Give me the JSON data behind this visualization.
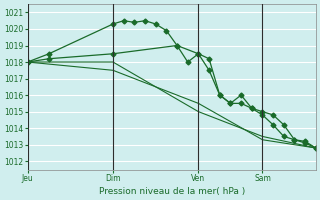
{
  "background_color": "#d0eeee",
  "grid_color": "#ffffff",
  "line_color": "#1a6b2a",
  "title": "Pression niveau de la mer( hPa )",
  "ylim": [
    1011.5,
    1021.5
  ],
  "yticks": [
    1012,
    1013,
    1014,
    1015,
    1016,
    1017,
    1018,
    1019,
    1020,
    1021
  ],
  "day_labels": [
    "Jeu",
    "Dim",
    "Ven",
    "Sam"
  ],
  "day_positions": [
    0,
    8,
    16,
    22
  ],
  "series1": {
    "x": [
      0,
      2,
      8,
      9,
      10,
      11,
      12,
      13,
      14,
      15,
      16,
      17,
      18,
      19,
      20,
      21,
      22,
      23,
      24,
      25,
      26,
      27
    ],
    "y": [
      1018.0,
      1018.5,
      1020.3,
      1020.5,
      1020.4,
      1020.5,
      1020.3,
      1019.9,
      1019.0,
      1018.0,
      1018.5,
      1018.2,
      1016.0,
      1015.5,
      1016.0,
      1015.2,
      1015.0,
      1014.8,
      1014.2,
      1013.3,
      1013.2,
      1012.8
    ],
    "marker": "D",
    "markersize": 2.5
  },
  "series2": {
    "x": [
      0,
      2,
      8,
      14,
      16,
      17,
      18,
      19,
      20,
      21,
      22,
      23,
      24,
      25,
      26,
      27
    ],
    "y": [
      1018.0,
      1018.2,
      1018.5,
      1019.0,
      1018.5,
      1017.5,
      1016.0,
      1015.5,
      1015.5,
      1015.2,
      1014.8,
      1014.2,
      1013.5,
      1013.3,
      1013.1,
      1012.8
    ],
    "marker": "D",
    "markersize": 2.5
  },
  "series3": {
    "x": [
      0,
      8,
      16,
      22,
      27
    ],
    "y": [
      1018.0,
      1018.0,
      1015.0,
      1013.5,
      1012.8
    ],
    "marker": null,
    "markersize": 0
  },
  "series4": {
    "x": [
      0,
      8,
      16,
      22,
      27
    ],
    "y": [
      1018.0,
      1017.5,
      1015.5,
      1013.3,
      1012.8
    ],
    "marker": null,
    "markersize": 0
  }
}
